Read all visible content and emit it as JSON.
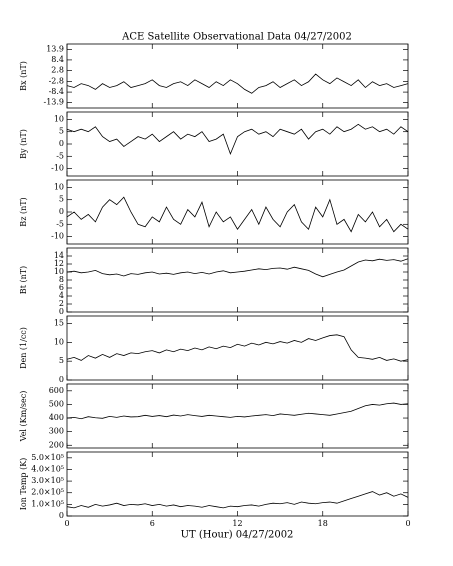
{
  "title": "ACE Satellite Observational Data  04/27/2002",
  "x_axis": {
    "label": "UT (Hour)  04/27/2002",
    "xlim": [
      0,
      24
    ],
    "xticks": [
      0,
      6,
      12,
      18,
      {
        "value": 24,
        "label": "0"
      }
    ],
    "x": [
      0,
      0.5,
      1,
      1.5,
      2,
      2.5,
      3,
      3.5,
      4,
      4.5,
      5,
      5.5,
      6,
      6.5,
      7,
      7.5,
      8,
      8.5,
      9,
      9.5,
      10,
      10.5,
      11,
      11.5,
      12,
      12.5,
      13,
      13.5,
      14,
      14.5,
      15,
      15.5,
      16,
      16.5,
      17,
      17.5,
      18,
      18.5,
      19,
      19.5,
      20,
      20.5,
      21,
      21.5,
      22,
      22.5,
      23,
      23.5,
      24
    ]
  },
  "chart_data": [
    {
      "type": "line",
      "ylabel": "Bx (nT)",
      "color": "#000000",
      "ylim": [
        -16.7,
        16.7
      ],
      "yticks": [
        13.9,
        8.4,
        2.8,
        -2.8,
        -8.4,
        -13.9
      ],
      "values": [
        -5,
        -6,
        -4,
        -5,
        -7,
        -4,
        -6,
        -5,
        -3,
        -6,
        -5,
        -4,
        -2,
        -5,
        -6,
        -4,
        -3,
        -5,
        -2,
        -4,
        -6,
        -3,
        -5,
        -2,
        -4,
        -7,
        -9,
        -6,
        -5,
        -3,
        -6,
        -4,
        -2,
        -5,
        -3,
        1,
        -2,
        -4,
        -1,
        -3,
        -5,
        -2,
        -6,
        -3,
        -5,
        -4,
        -6,
        -5,
        -4
      ]
    },
    {
      "type": "line",
      "ylabel": "By (nT)",
      "color": "#000000",
      "ylim": [
        -13,
        13
      ],
      "yticks": [
        10,
        5,
        0,
        -5,
        -10
      ],
      "values": [
        6,
        5,
        6,
        5,
        7,
        3,
        1,
        2,
        -1,
        1,
        3,
        2,
        4,
        1,
        3,
        5,
        2,
        4,
        3,
        5,
        1,
        2,
        4,
        -4,
        3,
        5,
        6,
        4,
        5,
        3,
        6,
        5,
        4,
        6,
        2,
        5,
        6,
        4,
        7,
        5,
        6,
        8,
        6,
        7,
        5,
        6,
        4,
        7,
        5
      ]
    },
    {
      "type": "line",
      "ylabel": "Bz (nT)",
      "color": "#000000",
      "ylim": [
        -13,
        13
      ],
      "yticks": [
        10,
        5,
        0,
        -5,
        -10
      ],
      "values": [
        -2,
        0,
        -3,
        -1,
        -4,
        2,
        5,
        3,
        6,
        0,
        -5,
        -6,
        -2,
        -4,
        2,
        -3,
        -5,
        1,
        -2,
        4,
        -6,
        0,
        -4,
        -2,
        -7,
        -3,
        1,
        -5,
        2,
        -3,
        -6,
        0,
        3,
        -4,
        -7,
        2,
        -2,
        5,
        -5,
        -3,
        -8,
        -1,
        -4,
        0,
        -6,
        -3,
        -8,
        -5,
        -7
      ]
    },
    {
      "type": "line",
      "ylabel": "Bt (nT)",
      "color": "#000000",
      "ylim": [
        0,
        16
      ],
      "yticks": [
        14,
        12,
        10,
        8,
        6,
        4,
        2,
        0
      ],
      "values": [
        10,
        10.2,
        9.8,
        10,
        10.4,
        9.6,
        9.3,
        9.5,
        9,
        9.6,
        9.4,
        9.8,
        10,
        9.5,
        9.7,
        9.4,
        9.8,
        10,
        9.6,
        9.9,
        9.5,
        10,
        10.3,
        9.8,
        10,
        10.2,
        10.5,
        10.8,
        10.6,
        10.9,
        11,
        10.7,
        11.2,
        10.8,
        10.4,
        9.5,
        8.8,
        9.4,
        10,
        10.5,
        11.5,
        12.5,
        13,
        12.8,
        13.2,
        12.9,
        13.1,
        12.7,
        13.3
      ]
    },
    {
      "type": "line",
      "ylabel": "Den (1/cc)",
      "color": "#000000",
      "ylim": [
        0,
        17
      ],
      "yticks": [
        15,
        10,
        5,
        0
      ],
      "values": [
        5.5,
        6,
        5.2,
        6.5,
        5.8,
        6.8,
        6,
        7,
        6.5,
        7.2,
        7,
        7.5,
        7.8,
        7.2,
        8,
        7.5,
        8.2,
        7.8,
        8.5,
        8,
        8.8,
        8.3,
        9,
        8.6,
        9.5,
        9,
        9.8,
        9.3,
        10,
        9.6,
        10.2,
        9.8,
        10.5,
        10,
        11,
        10.5,
        11.2,
        11.8,
        12,
        11.5,
        8,
        6,
        5.8,
        5.5,
        6,
        5.2,
        5.6,
        5,
        5.4
      ]
    },
    {
      "type": "line",
      "ylabel": "Vel (Km/sec)",
      "color": "#000000",
      "ylim": [
        180,
        650
      ],
      "yticks": [
        600,
        500,
        400,
        300,
        200
      ],
      "values": [
        400,
        405,
        395,
        410,
        402,
        398,
        412,
        405,
        415,
        408,
        410,
        420,
        412,
        418,
        410,
        422,
        415,
        425,
        418,
        412,
        420,
        415,
        410,
        405,
        412,
        408,
        415,
        420,
        425,
        418,
        430,
        425,
        420,
        428,
        435,
        430,
        425,
        420,
        430,
        440,
        450,
        470,
        490,
        500,
        495,
        505,
        510,
        500,
        505
      ]
    },
    {
      "type": "line",
      "ylabel": "Ion Temp (K)",
      "color": "#000000",
      "ylim": [
        0,
        550000
      ],
      "yticks": [
        {
          "value": 500000,
          "label": "5.0×10⁵"
        },
        {
          "value": 400000,
          "label": "4.0×10⁵"
        },
        {
          "value": 300000,
          "label": "3.0×10⁵"
        },
        {
          "value": 200000,
          "label": "2.0×10⁵"
        },
        {
          "value": 100000,
          "label": "1.0×10⁵"
        },
        0
      ],
      "values": [
        80000,
        70000,
        90000,
        75000,
        100000,
        85000,
        95000,
        110000,
        90000,
        100000,
        95000,
        105000,
        90000,
        100000,
        85000,
        95000,
        80000,
        90000,
        85000,
        75000,
        90000,
        80000,
        70000,
        85000,
        80000,
        90000,
        95000,
        85000,
        100000,
        110000,
        105000,
        115000,
        100000,
        120000,
        110000,
        105000,
        115000,
        120000,
        110000,
        130000,
        150000,
        170000,
        190000,
        210000,
        180000,
        200000,
        170000,
        190000,
        160000
      ]
    }
  ]
}
